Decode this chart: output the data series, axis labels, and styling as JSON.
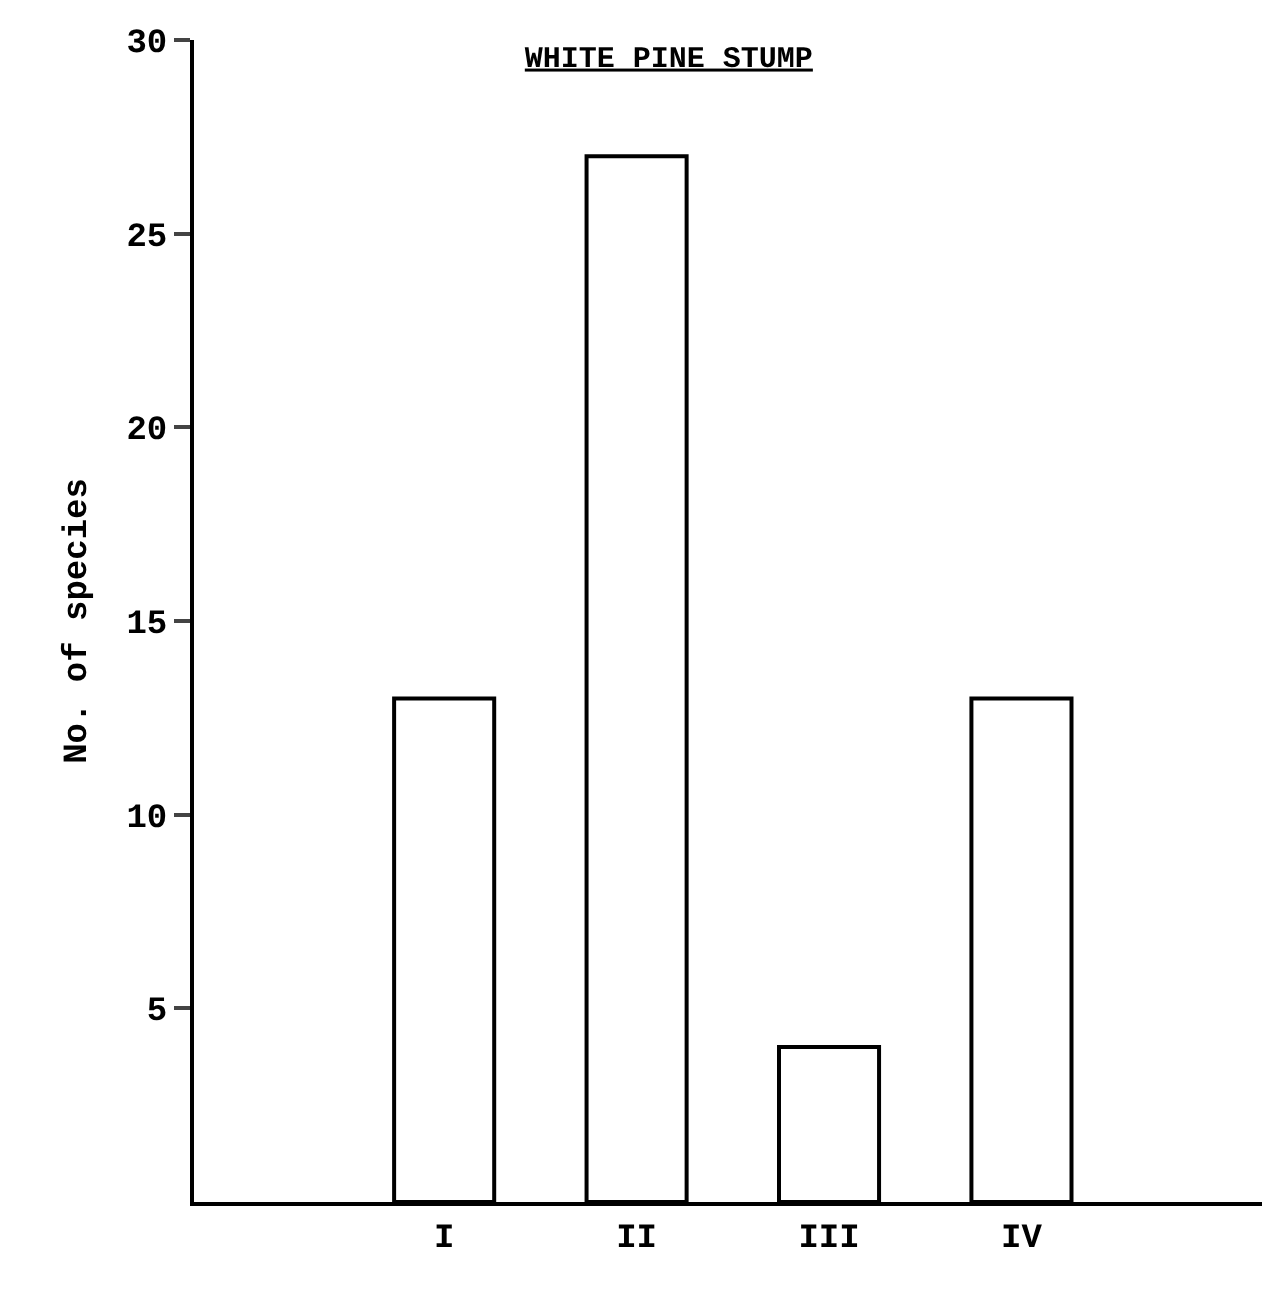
{
  "chart_data": {
    "type": "bar",
    "title": "WHITE PINE STUMP",
    "ylabel": "No. of species",
    "categories": [
      "I",
      "II",
      "III",
      "IV"
    ],
    "values": [
      13,
      27,
      4,
      13
    ],
    "color": "#ffffff",
    "ylim": [
      0,
      30
    ],
    "yticks": [
      5,
      10,
      15,
      20,
      25,
      30
    ],
    "legend": false
  }
}
